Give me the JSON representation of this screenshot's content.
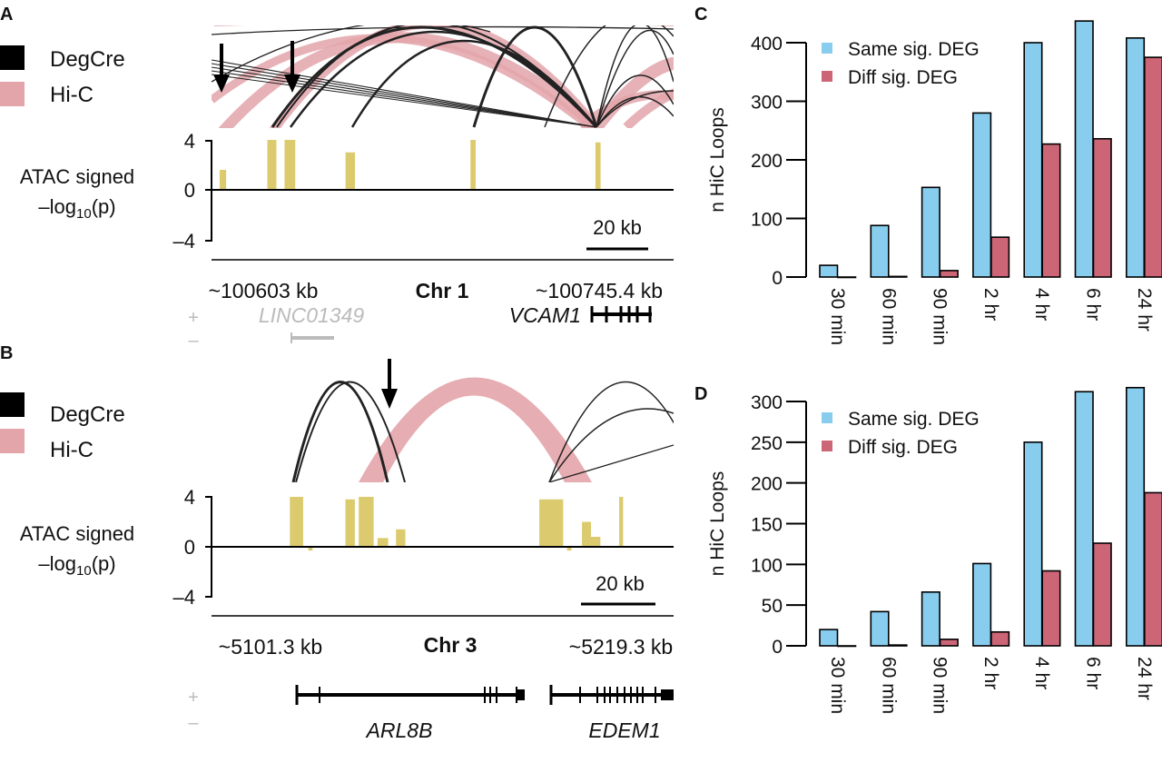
{
  "panels": {
    "A": {
      "label": "A",
      "legend": [
        {
          "label": "DegCre",
          "color": "#000000"
        },
        {
          "label": "Hi-C",
          "color": "#e3a4aa"
        }
      ],
      "atac_ylabel": {
        "line1": "ATAC signed",
        "pre": "–log",
        "sub": "10",
        "post": "(p)"
      },
      "yticks": [
        "4",
        "0",
        "–4"
      ],
      "scale_bar": "20 kb",
      "start": "~100603 kb",
      "chrom": "Chr 1",
      "end": "~100745.4 kb",
      "strand_plus": "+",
      "strand_minus": "–",
      "genes": [
        "LINC01349",
        "VCAM1"
      ]
    },
    "B": {
      "label": "B",
      "legend": [
        {
          "label": "DegCre",
          "color": "#000000"
        },
        {
          "label": "Hi-C",
          "color": "#e3a4aa"
        }
      ],
      "atac_ylabel": {
        "line1": "ATAC signed",
        "pre": "–log",
        "sub": "10",
        "post": "(p)"
      },
      "yticks": [
        "4",
        "0",
        "–4"
      ],
      "scale_bar": "20 kb",
      "start": "~5101.3 kb",
      "chrom": "Chr 3",
      "end": "~5219.3 kb",
      "strand_plus": "+",
      "strand_minus": "–",
      "genes": [
        "ARL8B",
        "EDEM1"
      ]
    },
    "C": {
      "label": "C"
    },
    "D": {
      "label": "D"
    }
  },
  "colors": {
    "same": "#88ccee",
    "diff": "#cc6677",
    "atac": "#dccb6e",
    "hic": "#e3a4aa"
  },
  "chart_data": [
    {
      "panel": "C",
      "type": "bar",
      "categories": [
        "30 min",
        "60 min",
        "90 min",
        "2 hr",
        "4 hr",
        "6 hr",
        "24 hr"
      ],
      "series": [
        {
          "name": "Same sig. DEG",
          "values": [
            20,
            88,
            153,
            280,
            400,
            437,
            408
          ]
        },
        {
          "name": "Diff sig. DEG",
          "values": [
            0,
            1,
            11,
            68,
            227,
            236,
            375
          ]
        }
      ],
      "ylabel": "n HiC Loops",
      "yticks": [
        "0",
        "100",
        "200",
        "300",
        "400"
      ],
      "ytick_values": [
        0,
        100,
        200,
        300,
        400
      ],
      "ylim": [
        0,
        400
      ],
      "legend": "top-left"
    },
    {
      "panel": "D",
      "type": "bar",
      "categories": [
        "30 min",
        "60 min",
        "90 min",
        "2 hr",
        "4 hr",
        "6 hr",
        "24 hr"
      ],
      "series": [
        {
          "name": "Same sig. DEG",
          "values": [
            20,
            42,
            66,
            101,
            250,
            312,
            317
          ]
        },
        {
          "name": "Diff sig. DEG",
          "values": [
            0,
            1,
            8,
            17,
            92,
            126,
            188
          ]
        }
      ],
      "ylabel": "n HiC Loops",
      "yticks": [
        "0",
        "50",
        "100",
        "150",
        "200",
        "250",
        "300"
      ],
      "ytick_values": [
        0,
        50,
        100,
        150,
        200,
        250,
        300
      ],
      "ylim": [
        0,
        300
      ],
      "legend": "top-left"
    },
    {
      "panel": "A",
      "type": "bar",
      "name": "ATAC signed -log10(p)",
      "region_kb": [
        100603,
        100745.4
      ],
      "ylim": [
        -4,
        4
      ],
      "peaks": [
        {
          "start_kb": 2.5,
          "end_kb": 4.5,
          "value": 1.6
        },
        {
          "start_kb": 17.2,
          "end_kb": 20.0,
          "value": 4
        },
        {
          "start_kb": 22.5,
          "end_kb": 25.8,
          "value": 4
        },
        {
          "start_kb": 41.3,
          "end_kb": 44.2,
          "value": 3
        },
        {
          "start_kb": 79.8,
          "end_kb": 81.4,
          "value": 4
        },
        {
          "start_kb": 118.3,
          "end_kb": 119.9,
          "value": 3.8
        }
      ]
    },
    {
      "panel": "B",
      "type": "bar",
      "name": "ATAC signed -log10(p)",
      "region_kb": [
        5101.3,
        5219.3
      ],
      "ylim": [
        -4,
        4
      ],
      "peaks": [
        {
          "start_kb": 20.0,
          "end_kb": 23.4,
          "value": 4
        },
        {
          "start_kb": 24.7,
          "end_kb": 25.8,
          "value": -0.3
        },
        {
          "start_kb": 34.2,
          "end_kb": 36.6,
          "value": 3.8
        },
        {
          "start_kb": 37.6,
          "end_kb": 41.4,
          "value": 4
        },
        {
          "start_kb": 42.4,
          "end_kb": 45.1,
          "value": 0.7
        },
        {
          "start_kb": 47.1,
          "end_kb": 49.5,
          "value": 1.4
        },
        {
          "start_kb": 83.7,
          "end_kb": 89.8,
          "value": 3.8
        },
        {
          "start_kb": 90.8,
          "end_kb": 91.9,
          "value": -0.3
        },
        {
          "start_kb": 94.6,
          "end_kb": 96.9,
          "value": 2
        },
        {
          "start_kb": 96.9,
          "end_kb": 99.3,
          "value": 0.8
        },
        {
          "start_kb": 104.1,
          "end_kb": 105.1,
          "value": 4
        }
      ]
    }
  ]
}
